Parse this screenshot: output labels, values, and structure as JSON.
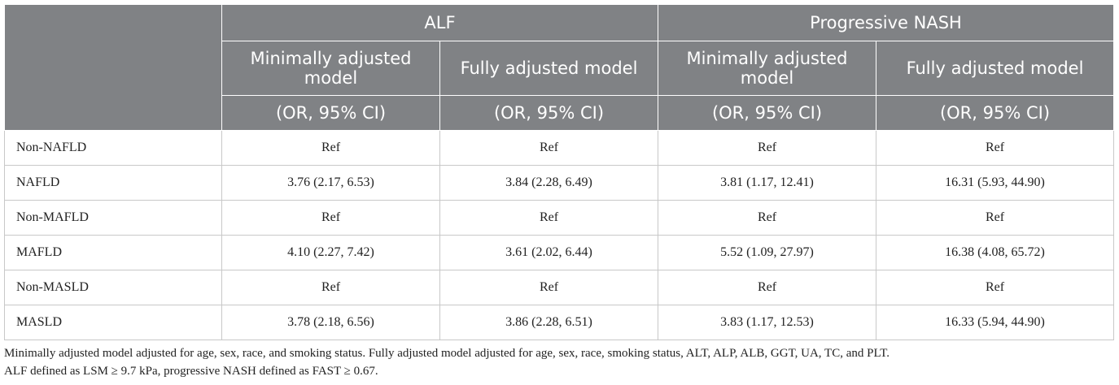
{
  "table": {
    "groups": [
      "ALF",
      "Progressive NASH"
    ],
    "subheaders": [
      "Minimally adjusted model",
      "Fully adjusted model",
      "Minimally adjusted model",
      "Fully adjusted model"
    ],
    "ci_labels": [
      "(OR, 95% CI)",
      "(OR, 95% CI)",
      "(OR, 95% CI)",
      "(OR, 95% CI)"
    ],
    "rows": [
      [
        "Non-NAFLD",
        "Ref",
        "Ref",
        "Ref",
        "Ref"
      ],
      [
        "NAFLD",
        "3.76 (2.17, 6.53)",
        "3.84 (2.28, 6.49)",
        "3.81 (1.17, 12.41)",
        "16.31 (5.93, 44.90)"
      ],
      [
        "Non-MAFLD",
        "Ref",
        "Ref",
        "Ref",
        "Ref"
      ],
      [
        "MAFLD",
        "4.10 (2.27, 7.42)",
        "3.61 (2.02, 6.44)",
        "5.52 (1.09, 27.97)",
        "16.38 (4.08, 65.72)"
      ],
      [
        "Non-MASLD",
        "Ref",
        "Ref",
        "Ref",
        "Ref"
      ],
      [
        "MASLD",
        "3.78 (2.18, 6.56)",
        "3.86 (2.28, 6.51)",
        "3.83 (1.17, 12.53)",
        "16.33 (5.94, 44.90)"
      ]
    ]
  },
  "footnotes": [
    "Minimally adjusted model adjusted for age, sex, race, and smoking status. Fully adjusted model adjusted for age, sex, race, smoking status, ALT, ALP, ALB, GGT, UA, TC, and PLT.",
    "ALF defined as LSM ≥ 9.7 kPa, progressive NASH defined as FAST ≥ 0.67."
  ]
}
